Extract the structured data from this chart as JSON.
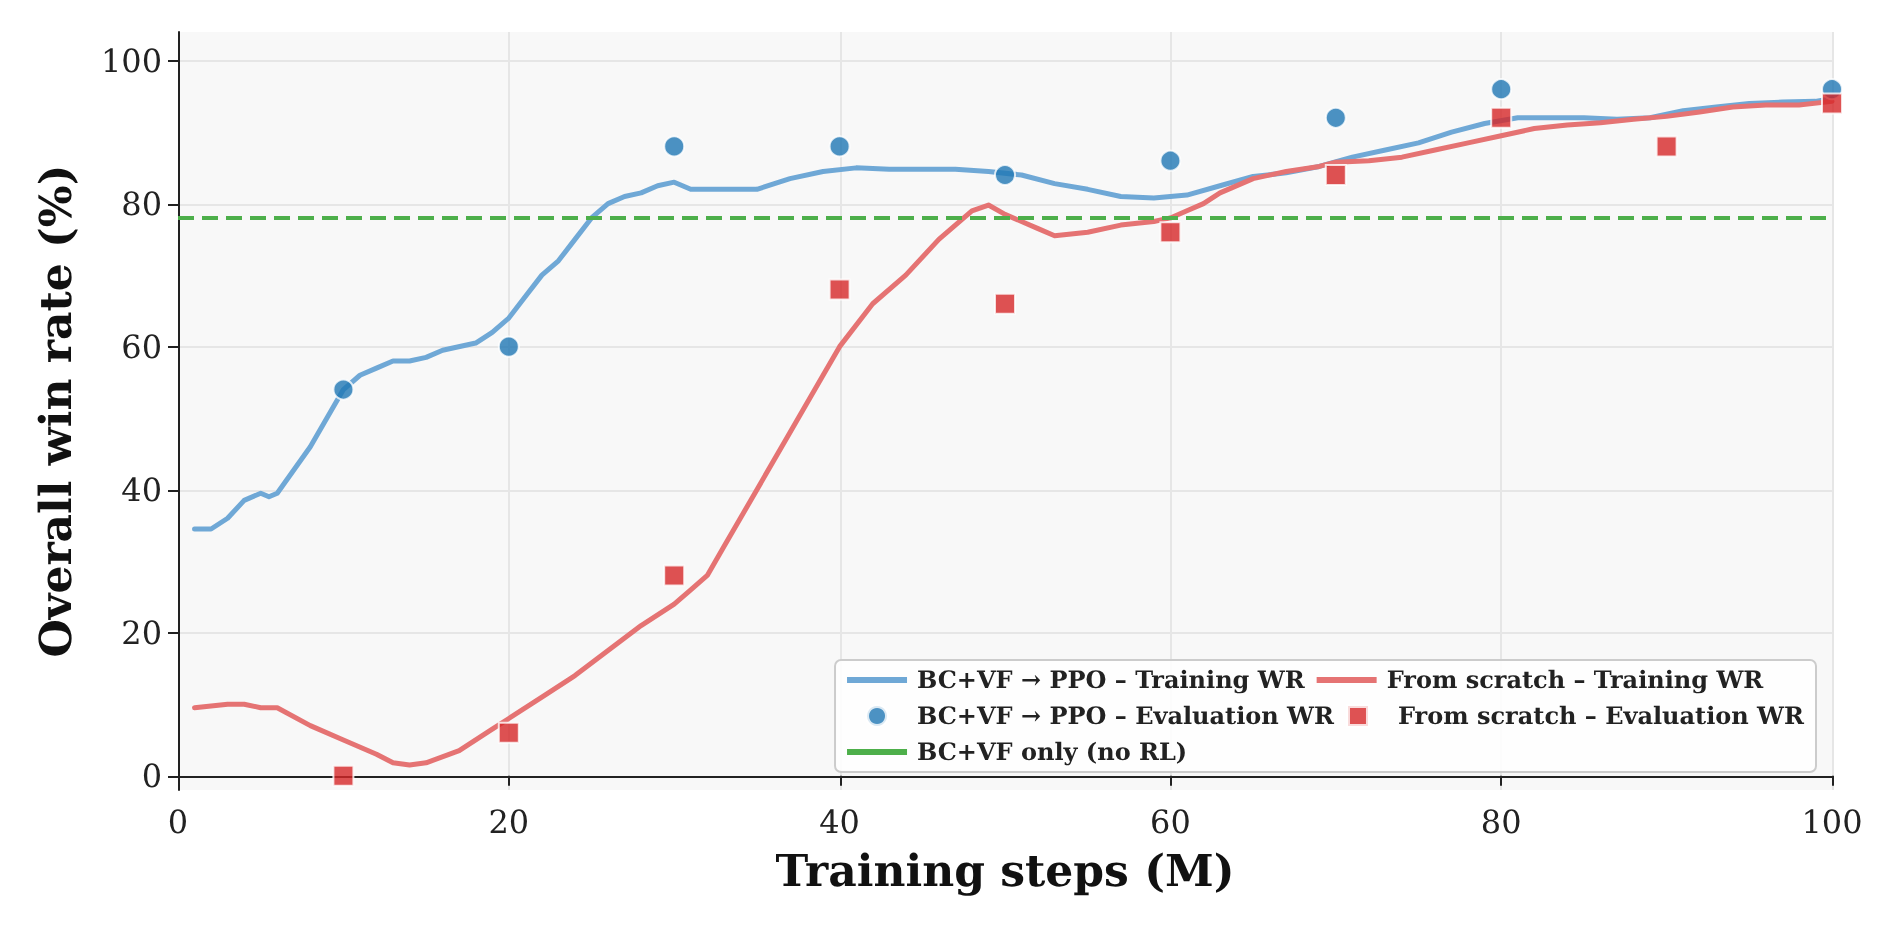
{
  "chart_data": {
    "type": "line",
    "xlabel": "Training steps (M)",
    "ylabel": "Overall win rate (%)",
    "xlim": [
      0,
      100
    ],
    "xticks": [
      0,
      20,
      40,
      60,
      80,
      100
    ],
    "ylim": [
      -2,
      104
    ],
    "yticks": [
      0,
      20,
      40,
      60,
      80,
      100
    ],
    "grid": true,
    "legend": "bottom right",
    "series": [
      {
        "name": "BC+VF → PPO – Training WR",
        "type": "line",
        "marker": "none",
        "color": "#6fa8d6",
        "x": [
          1,
          2,
          3,
          4,
          5,
          5.5,
          6,
          8,
          10,
          11,
          12,
          13,
          14,
          15,
          16,
          18,
          19,
          20,
          21,
          22,
          23,
          24,
          25,
          26,
          27,
          28,
          29,
          30,
          31,
          33,
          35,
          37,
          39,
          41,
          43,
          45,
          47,
          49,
          51,
          53,
          55,
          57,
          59,
          61,
          63,
          65,
          67,
          69,
          71,
          73,
          75,
          77,
          79,
          81,
          83,
          85,
          87,
          89,
          91,
          93,
          95,
          97,
          99,
          100
        ],
        "values": [
          34.5,
          34.5,
          36,
          38.5,
          39.5,
          39,
          39.5,
          46,
          54,
          56,
          57,
          58,
          58,
          58.5,
          59.5,
          60.5,
          62,
          64,
          67,
          70,
          72,
          75,
          78,
          80,
          81,
          81.5,
          82.5,
          83,
          82,
          82,
          82,
          83.5,
          84.5,
          85,
          84.8,
          84.8,
          84.8,
          84.5,
          84,
          82.8,
          82,
          81,
          80.8,
          81.2,
          82.5,
          83.8,
          84.3,
          85.2,
          86.5,
          87.5,
          88.5,
          90,
          91.2,
          92,
          92,
          92,
          91.8,
          92,
          93,
          93.5,
          94,
          94.2,
          94.3,
          94.7
        ]
      },
      {
        "name": "From scratch – Training WR",
        "type": "line",
        "marker": "none",
        "color": "#e57373",
        "x": [
          1,
          3,
          4,
          5,
          6,
          8,
          10,
          12,
          13,
          14,
          15,
          17,
          19,
          20,
          22,
          24,
          26,
          28,
          30,
          31,
          32,
          33,
          35,
          37,
          39,
          40,
          42,
          44,
          46,
          47,
          48,
          49,
          50,
          52,
          53,
          55,
          57,
          59,
          60,
          61,
          62,
          63,
          65,
          67,
          69,
          70,
          72,
          74,
          76,
          78,
          80,
          82,
          84,
          86,
          88,
          90,
          92,
          94,
          96,
          98,
          100
        ],
        "values": [
          9.5,
          10,
          10,
          9.5,
          9.5,
          7,
          5,
          3,
          1.8,
          1.5,
          1.8,
          3.5,
          6.5,
          8,
          11,
          14,
          17.5,
          21,
          24,
          26,
          28,
          32,
          40,
          48,
          56,
          60,
          66,
          70,
          75,
          77,
          79,
          79.8,
          78.5,
          76.5,
          75.5,
          76,
          77,
          77.5,
          78,
          79,
          80,
          81.5,
          83.5,
          84.5,
          85.2,
          85.8,
          86,
          86.5,
          87.5,
          88.5,
          89.5,
          90.5,
          91,
          91.3,
          91.8,
          92.2,
          92.8,
          93.5,
          93.8,
          93.8,
          94.3
        ]
      },
      {
        "name": "BC+VF → PPO – Evaluation WR",
        "type": "scatter",
        "marker": "circle",
        "color": "#1f77b4",
        "x": [
          10,
          20,
          30,
          40,
          50,
          60,
          70,
          80,
          100
        ],
        "values": [
          54,
          60,
          88,
          88,
          84,
          86,
          92,
          96,
          96
        ]
      },
      {
        "name": "From scratch – Evaluation WR",
        "type": "scatter",
        "marker": "square",
        "color": "#d62728",
        "x": [
          10,
          20,
          30,
          40,
          50,
          60,
          70,
          80,
          90,
          100
        ],
        "values": [
          0,
          6,
          28,
          68,
          66,
          76,
          84,
          92,
          88,
          94
        ]
      }
    ],
    "ref_lines": [
      {
        "axis": "y",
        "value": 78,
        "label": "BC+VF only (no RL)",
        "color": "#4daf4a",
        "line_style": "dashed"
      }
    ]
  }
}
